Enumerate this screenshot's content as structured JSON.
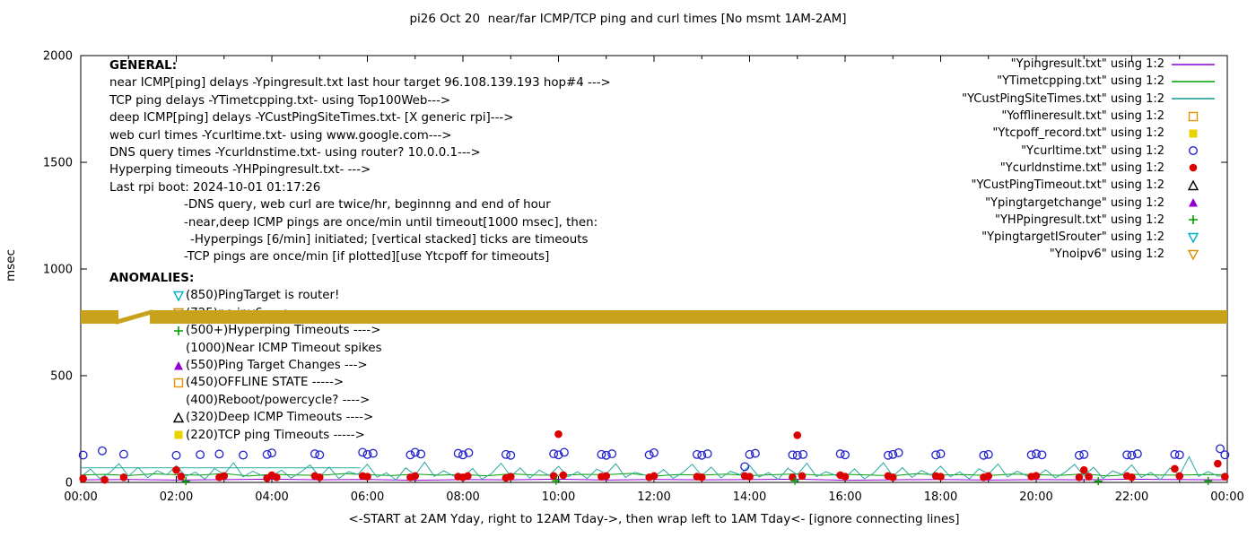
{
  "title": "pi26 Oct 20  near/far ICMP/TCP ping and curl times [No msmt 1AM-2AM]",
  "axes": {
    "ylabel": "msec",
    "xlabel": "<-START at 2AM Yday, right to 12AM Tday->, then wrap left to 1AM Tday<- [ignore connecting lines]"
  },
  "legend": {
    "items": [
      {
        "label": "\"Ypingresult.txt\" using 1:2",
        "marker": "line",
        "color": "#9400d3"
      },
      {
        "label": "\"YTimetcpping.txt\" using 1:2",
        "marker": "line",
        "color": "#00a000"
      },
      {
        "label": "\"YCustPingSiteTimes.txt\" using 1:2",
        "marker": "line",
        "color": "#109890"
      },
      {
        "label": "\"Yofflineresult.txt\" using 1:2",
        "marker": "square-open",
        "color": "#e69500"
      },
      {
        "label": "\"Ytcpoff_record.txt\" using 1:2",
        "marker": "square-filled",
        "color": "#e8d300"
      },
      {
        "label": "\"Ycurltime.txt\" using 1:2",
        "marker": "circle-open",
        "color": "#2222cc"
      },
      {
        "label": "\"Ycurldnstime.txt\" using 1:2",
        "marker": "circle-filled",
        "color": "#dd0000"
      },
      {
        "label": "\"YCustPingTimeout.txt\" using 1:2",
        "marker": "tri-up-open",
        "color": "#000000"
      },
      {
        "label": "\"Ypingtargetchange\" using 1:2",
        "marker": "tri-up-filled",
        "color": "#9400d3"
      },
      {
        "label": "\"YHPpingresult.txt\" using 1:2",
        "marker": "plus",
        "color": "#00a000"
      },
      {
        "label": "\"YpingtargetISrouter\" using 1:2",
        "marker": "tri-down-open",
        "color": "#00b0c0"
      },
      {
        "label": "\"Ynoipv6\" using 1:2",
        "marker": "tri-down-open",
        "color": "#d89000"
      }
    ]
  },
  "general": {
    "heading": "GENERAL:",
    "lines": [
      {
        "text": "near ICMP[ping] delays -Ypingresult.txt last hour target 96.108.139.193 hop#4 --->",
        "indent": 0
      },
      {
        "text": "TCP ping delays -YTimetcpping.txt- using Top100Web--->",
        "indent": 0
      },
      {
        "text": "deep ICMP[ping] delays -YCustPingSiteTimes.txt- [X generic rpi]--->",
        "indent": 0
      },
      {
        "text": "web curl times -Ycurltime.txt- using www.google.com--->",
        "indent": 0
      },
      {
        "text": "DNS query times -Ycurldnstime.txt- using router? 10.0.0.1--->",
        "indent": 0
      },
      {
        "text": "Hyperping timeouts -YHPpingresult.txt- --->",
        "indent": 0
      },
      {
        "text": "Last rpi boot: 2024-10-01 01:17:26",
        "indent": 0
      },
      {
        "text": "-DNS query, web curl are twice/hr, beginnng and end of hour",
        "indent": 83
      },
      {
        "text": "-near,deep ICMP pings are once/min until timeout[1000 msec], then:",
        "indent": 83
      },
      {
        "text": "-Hyperpings [6/min] initiated; [vertical stacked] ticks are timeouts",
        "indent": 90
      },
      {
        "text": "-TCP pings are once/min [if plotted][use Ytcpoff for timeouts]",
        "indent": 83
      }
    ]
  },
  "anomalies": {
    "heading": "ANOMALIES:",
    "items": [
      {
        "marker": "tri-down-open",
        "color": "#00b0c0",
        "text": "(850)PingTarget is router!"
      },
      {
        "marker": "tri-down-open",
        "color": "#d89000",
        "text": "(725)no ipv6 ---->"
      },
      {
        "marker": "plus",
        "color": "#00a000",
        "text": "(500+)Hyperping Timeouts ---->"
      },
      {
        "marker": "none",
        "color": "",
        "text": "(1000)Near ICMP Timeout spikes"
      },
      {
        "marker": "tri-up-filled",
        "color": "#9400d3",
        "text": "(550)Ping Target Changes --->"
      },
      {
        "marker": "square-open",
        "color": "#e69500",
        "text": "(450)OFFLINE STATE ----->"
      },
      {
        "marker": "none",
        "color": "",
        "text": "(400)Reboot/powercycle? ---->"
      },
      {
        "marker": "tri-up-open",
        "color": "#000000",
        "text": "(320)Deep ICMP Timeouts ---->"
      },
      {
        "marker": "square-filled",
        "color": "#e8d300",
        "text": "(220)TCP ping Timeouts ----->"
      }
    ]
  },
  "chart_data": {
    "type": "scatter",
    "title": "pi26 Oct 20  near/far ICMP/TCP ping and curl times [No msmt 1AM-2AM]",
    "xlabel": "<-START at 2AM Yday, right to 12AM Tday->, then wrap left to 1AM Tday<- [ignore connecting lines]",
    "ylabel": "msec",
    "ylim": [
      0,
      2000
    ],
    "yticks": [
      0,
      500,
      1000,
      1500,
      2000
    ],
    "xlim_hours": [
      0,
      24
    ],
    "xtick_labels": [
      "00:00",
      "02:00",
      "04:00",
      "06:00",
      "08:00",
      "10:00",
      "12:00",
      "14:00",
      "16:00",
      "18:00",
      "20:00",
      "22:00",
      "00:00"
    ],
    "grid": false,
    "legend_position": "top-right",
    "band": {
      "name": "Ynoipv6",
      "y": 775,
      "half": 31,
      "color": "#c9a21b",
      "gap_hours": [
        0.78,
        1.44
      ]
    },
    "series": [
      {
        "name": "Ypingresult.txt",
        "type": "line",
        "color": "#9400d3",
        "step": 1,
        "values": [
          12,
          14,
          11,
          13,
          15,
          12,
          14,
          10,
          13,
          12,
          15,
          11,
          14,
          12,
          13,
          15,
          10,
          12,
          14,
          11,
          13,
          12,
          15,
          13,
          12
        ]
      },
      {
        "name": "YTimetcpping.txt",
        "type": "line",
        "color": "#00a000",
        "step": 0.5,
        "values": [
          35,
          38,
          32,
          40,
          36,
          34,
          42,
          30,
          38,
          35,
          33,
          41,
          36,
          32,
          39,
          34,
          37,
          31,
          40,
          35,
          33,
          38,
          36,
          42,
          30,
          37,
          34,
          39,
          32,
          36,
          40,
          33,
          38,
          35,
          31,
          41,
          34,
          37,
          32,
          39,
          36,
          33,
          40,
          30,
          38,
          35,
          34,
          37,
          36
        ]
      },
      {
        "name": "YCustPingSiteTimes.txt",
        "type": "line",
        "color": "#2aa8a0",
        "step": 0.2,
        "values": [
          25,
          62,
          18,
          45,
          88,
          30,
          70,
          22,
          55,
          35,
          78,
          28,
          48,
          15,
          65,
          38,
          92,
          26,
          52,
          32,
          28,
          58,
          20,
          48,
          82,
          26,
          72,
          18,
          50,
          38,
          85,
          24,
          45,
          12,
          68,
          35,
          95,
          28,
          55,
          30,
          22,
          65,
          15,
          42,
          90,
          28,
          68,
          20,
          58,
          32,
          75,
          26,
          50,
          18,
          62,
          40,
          88,
          24,
          48,
          35,
          26,
          60,
          19,
          46,
          85,
          32,
          72,
          21,
          52,
          36,
          80,
          25,
          46,
          14,
          66,
          36,
          90,
          27,
          50,
          33,
          24,
          63,
          17,
          44,
          92,
          29,
          69,
          23,
          56,
          34,
          76,
          27,
          49,
          16,
          64,
          39,
          86,
          25,
          53,
          31,
          27,
          59,
          21,
          47,
          84,
          31,
          71,
          19,
          54,
          37,
          82,
          23,
          47,
          13,
          67,
          34,
          120,
          28,
          51,
          30,
          26
        ]
      },
      {
        "name": "YCustPingSiteTimes.txt level",
        "type": "line",
        "color": "#2aa8a0",
        "points": [
          [
            0,
            68
          ],
          [
            5.85,
            68
          ]
        ]
      },
      {
        "name": "Ycurltime.txt",
        "type": "scatter",
        "marker": "circle-open",
        "color": "#2222cc",
        "points": [
          [
            0.05,
            128
          ],
          [
            0.45,
            148
          ],
          [
            0.9,
            132
          ],
          [
            2.0,
            127
          ],
          [
            2.5,
            130
          ],
          [
            2.9,
            133
          ],
          [
            3.4,
            128
          ],
          [
            3.9,
            131
          ],
          [
            4.0,
            138
          ],
          [
            4.9,
            134
          ],
          [
            5.0,
            129
          ],
          [
            5.9,
            141
          ],
          [
            6.0,
            131
          ],
          [
            6.12,
            136
          ],
          [
            6.9,
            129
          ],
          [
            7.0,
            141
          ],
          [
            7.12,
            133
          ],
          [
            7.9,
            136
          ],
          [
            8.0,
            129
          ],
          [
            8.12,
            139
          ],
          [
            8.9,
            131
          ],
          [
            9.0,
            127
          ],
          [
            9.9,
            134
          ],
          [
            10.0,
            129
          ],
          [
            10.12,
            141
          ],
          [
            10.9,
            131
          ],
          [
            11.0,
            127
          ],
          [
            11.12,
            134
          ],
          [
            11.9,
            129
          ],
          [
            12.0,
            139
          ],
          [
            12.9,
            131
          ],
          [
            13.0,
            127
          ],
          [
            13.12,
            134
          ],
          [
            13.9,
            74
          ],
          [
            14.0,
            131
          ],
          [
            14.12,
            136
          ],
          [
            14.9,
            129
          ],
          [
            15.0,
            127
          ],
          [
            15.12,
            131
          ],
          [
            15.9,
            134
          ],
          [
            16.0,
            129
          ],
          [
            16.9,
            127
          ],
          [
            17.0,
            131
          ],
          [
            17.12,
            139
          ],
          [
            17.9,
            129
          ],
          [
            18.0,
            134
          ],
          [
            18.9,
            127
          ],
          [
            19.0,
            131
          ],
          [
            19.9,
            129
          ],
          [
            20.0,
            134
          ],
          [
            20.12,
            129
          ],
          [
            20.9,
            127
          ],
          [
            21.0,
            131
          ],
          [
            21.9,
            129
          ],
          [
            22.0,
            127
          ],
          [
            22.12,
            134
          ],
          [
            22.9,
            131
          ],
          [
            23.0,
            129
          ],
          [
            23.85,
            158
          ],
          [
            23.95,
            129
          ]
        ]
      },
      {
        "name": "Ycurldnstime.txt",
        "type": "scatter",
        "marker": "circle-filled",
        "color": "#dd0000",
        "points": [
          [
            0.05,
            18
          ],
          [
            0.5,
            12
          ],
          [
            0.9,
            24
          ],
          [
            2.0,
            58
          ],
          [
            2.1,
            28
          ],
          [
            2.9,
            24
          ],
          [
            3.0,
            30
          ],
          [
            3.9,
            20
          ],
          [
            4.0,
            34
          ],
          [
            4.1,
            24
          ],
          [
            4.9,
            30
          ],
          [
            5.0,
            24
          ],
          [
            5.9,
            30
          ],
          [
            6.0,
            27
          ],
          [
            6.9,
            24
          ],
          [
            7.0,
            30
          ],
          [
            7.9,
            27
          ],
          [
            8.0,
            24
          ],
          [
            8.1,
            30
          ],
          [
            8.9,
            21
          ],
          [
            9.0,
            27
          ],
          [
            9.9,
            30
          ],
          [
            10.0,
            226
          ],
          [
            10.1,
            34
          ],
          [
            10.9,
            27
          ],
          [
            11.0,
            30
          ],
          [
            11.9,
            24
          ],
          [
            12.0,
            30
          ],
          [
            12.9,
            27
          ],
          [
            13.0,
            24
          ],
          [
            13.9,
            30
          ],
          [
            14.0,
            27
          ],
          [
            14.9,
            24
          ],
          [
            15.0,
            221
          ],
          [
            15.1,
            30
          ],
          [
            15.9,
            34
          ],
          [
            16.0,
            27
          ],
          [
            16.9,
            30
          ],
          [
            17.0,
            24
          ],
          [
            17.9,
            30
          ],
          [
            18.0,
            27
          ],
          [
            18.9,
            24
          ],
          [
            19.0,
            30
          ],
          [
            19.9,
            27
          ],
          [
            20.0,
            31
          ],
          [
            20.9,
            24
          ],
          [
            21.0,
            58
          ],
          [
            21.1,
            27
          ],
          [
            21.9,
            30
          ],
          [
            22.0,
            24
          ],
          [
            22.9,
            64
          ],
          [
            23.0,
            30
          ],
          [
            23.8,
            88
          ],
          [
            23.95,
            27
          ]
        ]
      },
      {
        "name": "YHPpingresult.txt",
        "type": "scatter",
        "marker": "plus",
        "color": "#00a000",
        "points": [
          [
            2.2,
            6
          ],
          [
            9.95,
            8
          ],
          [
            14.95,
            8
          ],
          [
            21.3,
            6
          ],
          [
            23.6,
            7
          ]
        ]
      }
    ]
  }
}
